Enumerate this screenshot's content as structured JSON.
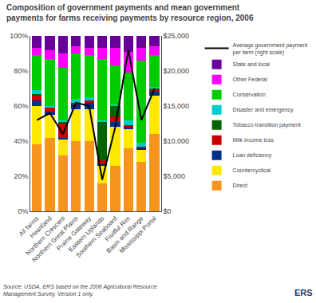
{
  "chart_data": {
    "type": "bar",
    "stacked": true,
    "title": "Composition of government payments and mean government\npayments for farms receiving payments by resource region, 2006",
    "categories": [
      "All farms",
      "Heartland",
      "Northern Crescent",
      "Northern Great Plains",
      "Prairie Gateway",
      "Eastern Uplands",
      "Southern Seaboard",
      "Fruitful Rim",
      "Basin and Range",
      "Mississippi Portal"
    ],
    "series": [
      {
        "name": "Direct",
        "color": "#F7941D",
        "values": [
          0.38,
          0.42,
          0.32,
          0.4,
          0.4,
          0.16,
          0.26,
          0.36,
          0.28,
          0.44
        ]
      },
      {
        "name": "Countercyclical",
        "color": "#FFE800",
        "values": [
          0.22,
          0.13,
          0.09,
          0.18,
          0.18,
          0.1,
          0.22,
          0.11,
          0.07,
          0.22
        ]
      },
      {
        "name": "Loan deficiency",
        "color": "#003087",
        "values": [
          0.03,
          0.02,
          0.01,
          0.03,
          0.04,
          0.01,
          0.03,
          0.01,
          0.01,
          0.02
        ]
      },
      {
        "name": "Milk income loss",
        "color": "#CC0000",
        "values": [
          0.03,
          0.02,
          0.08,
          0.01,
          0.01,
          0.02,
          0.03,
          0.01,
          0.01,
          0.01
        ]
      },
      {
        "name": "Tobacco transition payment",
        "color": "#006400",
        "values": [
          0.01,
          0.0,
          0.01,
          0.0,
          0.0,
          0.22,
          0.06,
          0.0,
          0.0,
          0.01
        ]
      },
      {
        "name": "Disaster and emergency",
        "color": "#00CCCC",
        "values": [
          0.02,
          0.01,
          0.01,
          0.02,
          0.02,
          0.01,
          0.01,
          0.03,
          0.02,
          0.01
        ]
      },
      {
        "name": "Conservation",
        "color": "#00CC00",
        "values": [
          0.2,
          0.27,
          0.3,
          0.26,
          0.24,
          0.35,
          0.22,
          0.27,
          0.47,
          0.18
        ]
      },
      {
        "name": "Other Federal",
        "color": "#FF00FF",
        "values": [
          0.04,
          0.05,
          0.08,
          0.04,
          0.04,
          0.06,
          0.1,
          0.12,
          0.07,
          0.05
        ]
      },
      {
        "name": "State and local",
        "color": "#660099",
        "values": [
          0.07,
          0.08,
          0.1,
          0.06,
          0.07,
          0.07,
          0.07,
          0.09,
          0.07,
          0.06
        ]
      },
      {
        "name": "Average government payment\nper farm (right scale)",
        "type": "line",
        "axis": "y2",
        "color": "black",
        "values": [
          13000,
          14000,
          11000,
          15500,
          15000,
          4500,
          12000,
          23000,
          13000,
          17500
        ]
      }
    ],
    "ylim": [
      0,
      1.0
    ],
    "yticks": [
      {
        "value": 0,
        "label": "0%"
      },
      {
        "value": 0.2,
        "label": "20%"
      },
      {
        "value": 0.4,
        "label": "40%"
      },
      {
        "value": 0.6,
        "label": "60%"
      },
      {
        "value": 0.8,
        "label": "80%"
      },
      {
        "value": 1.0,
        "label": "100%"
      }
    ],
    "y2lim": [
      0,
      25000
    ],
    "y2ticks": [
      {
        "value": 0,
        "label": "$0"
      },
      {
        "value": 5000,
        "label": "$5,000"
      },
      {
        "value": 10000,
        "label": "$10,000"
      },
      {
        "value": 15000,
        "label": "$15,000"
      },
      {
        "value": 20000,
        "label": "$20,000"
      },
      {
        "value": 25000,
        "label": "$25,000"
      }
    ],
    "grid": false,
    "legend": "right",
    "annotations": [
      "Source: USDA, ERS based on the 2006 Agricultural Resource\nManagement Survey, Version 1 only.",
      "ERS"
    ]
  }
}
